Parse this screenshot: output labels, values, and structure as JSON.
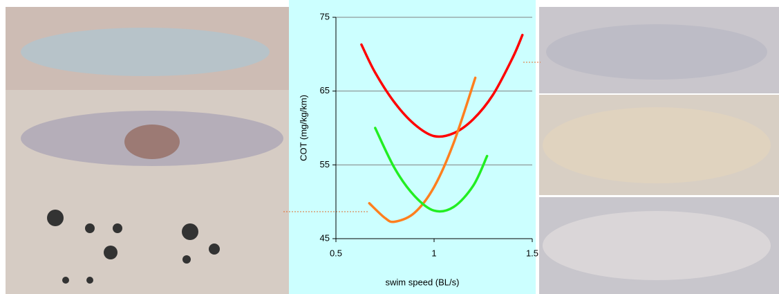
{
  "chart_data": {
    "type": "line",
    "xlabel": "swim speed (BL/s)",
    "ylabel": "COT (mg/kg/km)",
    "xlim": [
      0.5,
      1.5
    ],
    "xticks": [
      0.5,
      1,
      1.5
    ],
    "ylim": [
      45,
      75
    ],
    "yticks": [
      45,
      55,
      65,
      75
    ],
    "grid": true,
    "series": [
      {
        "color": "#ff0000",
        "x": [
          0.63,
          0.7,
          0.8,
          0.9,
          1.0,
          1.1,
          1.2,
          1.3,
          1.4,
          1.45
        ],
        "values": [
          71.3,
          67.5,
          63.4,
          60.5,
          58.9,
          59.3,
          61.2,
          64.5,
          69.5,
          72.6
        ]
      },
      {
        "color": "#ff7f1e",
        "x": [
          0.67,
          0.75,
          0.8,
          0.9,
          1.0,
          1.1,
          1.21
        ],
        "values": [
          49.8,
          47.8,
          47.3,
          48.5,
          52,
          58,
          66.8
        ]
      },
      {
        "color": "#22ee22",
        "x": [
          0.7,
          0.8,
          0.9,
          1.0,
          1.1,
          1.2,
          1.27
        ],
        "values": [
          60,
          54.5,
          50.8,
          48.8,
          49.3,
          52.2,
          56.2
        ]
      }
    ]
  }
}
